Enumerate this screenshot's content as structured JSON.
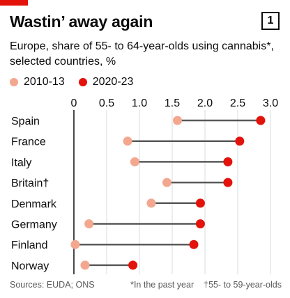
{
  "header": {
    "title": "Wastin’ away again",
    "figure_number": "1",
    "subtitle": "Europe, share of 55- to 64-year-olds using cannabis*, selected countries, %"
  },
  "footer": {
    "source": "Sources: EUDA; ONS",
    "note1": "*In the past year",
    "note2": "†55- to 59-year-olds"
  },
  "colors": {
    "accent": "#e3120b",
    "early": "#f4a78f",
    "late": "#e3120b",
    "connector": "#595959"
  },
  "chart_data": {
    "type": "dumbbell",
    "xlim": [
      0,
      3.0
    ],
    "xticks": [
      "0",
      "0.5",
      "1.0",
      "1.5",
      "2.0",
      "2.5",
      "3.0"
    ],
    "grid": true,
    "legend_position": "top-left",
    "categories": [
      "Spain",
      "France",
      "Italy",
      "Britain†",
      "Denmark",
      "Germany",
      "Finland",
      "Norway"
    ],
    "series": [
      {
        "name": "2010-13",
        "values": [
          1.58,
          0.82,
          0.93,
          1.42,
          1.18,
          0.23,
          0.02,
          0.17
        ]
      },
      {
        "name": "2020-23",
        "values": [
          2.85,
          2.53,
          2.35,
          2.35,
          1.93,
          1.93,
          1.83,
          0.9
        ]
      }
    ]
  }
}
